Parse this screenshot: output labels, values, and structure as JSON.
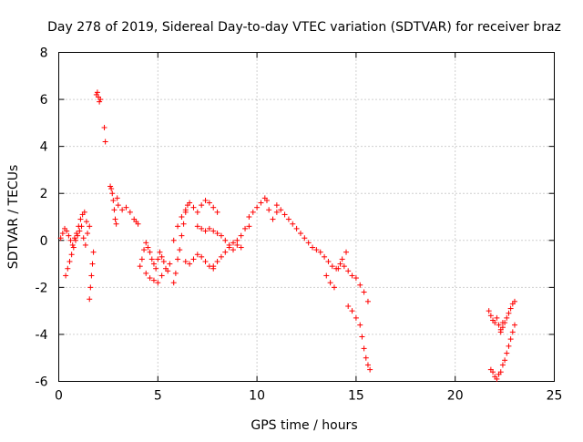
{
  "chart_data": {
    "type": "scatter",
    "title": "Day 278 of 2019, Sidereal Day-to-day VTEC variation (SDTVAR) for receiver braz",
    "xlabel": "GPS time / hours",
    "ylabel": "SDTVAR / TECUs",
    "xlim": [
      0,
      25
    ],
    "ylim": [
      -6,
      8
    ],
    "xticks": [
      0,
      5,
      10,
      15,
      20,
      25
    ],
    "yticks": [
      -6,
      -4,
      -2,
      0,
      2,
      4,
      6,
      8
    ],
    "grid": true,
    "marker": "+",
    "color": "#ff0000",
    "series": [
      {
        "name": "SDTVAR",
        "x": [
          0.1,
          0.2,
          0.3,
          0.4,
          0.5,
          0.6,
          0.7,
          0.8,
          0.9,
          1.0,
          1.1,
          1.2,
          1.3,
          1.4,
          0.35,
          0.45,
          0.55,
          0.65,
          0.75,
          0.85,
          0.95,
          1.05,
          1.15,
          1.25,
          1.35,
          1.45,
          1.55,
          1.55,
          1.6,
          1.65,
          1.7,
          1.75,
          1.9,
          1.95,
          2.0,
          2.05,
          2.1,
          2.3,
          2.35,
          2.6,
          2.65,
          2.7,
          2.75,
          2.8,
          2.85,
          2.9,
          2.95,
          3.0,
          3.2,
          3.4,
          3.6,
          3.8,
          3.9,
          4.0,
          4.1,
          4.2,
          4.3,
          4.4,
          4.5,
          4.6,
          4.7,
          4.8,
          4.9,
          5.0,
          5.1,
          5.2,
          5.3,
          4.4,
          4.6,
          4.8,
          5.0,
          5.2,
          5.4,
          5.5,
          5.6,
          5.8,
          5.9,
          6.0,
          6.1,
          6.2,
          6.3,
          6.4,
          6.5,
          5.8,
          6.0,
          6.2,
          6.4,
          6.6,
          6.8,
          7.0,
          7.2,
          7.4,
          7.6,
          7.8,
          8.0,
          6.4,
          6.6,
          6.8,
          7.0,
          7.2,
          7.4,
          7.6,
          7.8,
          7.0,
          7.2,
          7.4,
          7.6,
          7.8,
          8.0,
          8.2,
          8.4,
          8.6,
          8.8,
          9.0,
          9.2,
          9.4,
          9.6,
          7.8,
          8.0,
          8.2,
          8.4,
          8.6,
          8.8,
          9.0,
          9.2,
          9.6,
          9.8,
          10.0,
          10.2,
          10.4,
          10.5,
          10.6,
          10.8,
          11.0,
          11.0,
          11.2,
          11.4,
          11.6,
          11.8,
          12.0,
          12.2,
          12.4,
          12.6,
          12.8,
          13.0,
          13.2,
          13.4,
          13.6,
          13.8,
          14.0,
          14.2,
          14.4,
          14.6,
          14.8,
          15.0,
          15.2,
          15.4,
          15.6,
          13.5,
          13.7,
          13.9,
          14.1,
          14.3,
          14.5,
          14.6,
          14.8,
          15.0,
          15.2,
          15.3,
          15.4,
          15.5,
          15.6,
          15.7,
          21.7,
          21.8,
          21.9,
          22.0,
          22.1,
          22.2,
          22.3,
          22.4,
          21.8,
          21.9,
          22.0,
          22.1,
          22.2,
          22.3,
          22.4,
          22.5,
          22.6,
          22.7,
          22.8,
          22.9,
          23.0,
          22.3,
          22.4,
          22.5,
          22.6,
          22.7,
          22.8,
          22.9,
          23.0
        ],
        "y": [
          0.1,
          0.3,
          0.5,
          0.4,
          0.2,
          0.0,
          -0.2,
          0.1,
          0.3,
          0.6,
          0.9,
          1.1,
          1.2,
          0.8,
          -1.5,
          -1.2,
          -0.9,
          -0.6,
          -0.3,
          0.0,
          0.2,
          0.4,
          0.6,
          0.1,
          -0.2,
          0.3,
          0.6,
          -2.5,
          -2.0,
          -1.5,
          -1.0,
          -0.5,
          6.2,
          6.3,
          6.1,
          5.9,
          6.0,
          4.8,
          4.2,
          2.3,
          2.2,
          2.0,
          1.7,
          1.3,
          0.9,
          0.7,
          1.8,
          1.5,
          1.3,
          1.4,
          1.2,
          0.9,
          0.8,
          0.7,
          -1.1,
          -0.8,
          -0.4,
          -0.1,
          -0.3,
          -0.5,
          -0.8,
          -1.0,
          -1.2,
          -0.8,
          -0.5,
          -0.7,
          -0.9,
          -1.4,
          -1.6,
          -1.7,
          -1.8,
          -1.5,
          -1.2,
          -1.3,
          -1.0,
          -1.8,
          -1.4,
          -0.8,
          -0.4,
          0.2,
          0.7,
          1.2,
          1.5,
          0.0,
          0.6,
          1.0,
          1.3,
          1.6,
          1.4,
          1.2,
          1.5,
          1.7,
          1.6,
          1.4,
          1.2,
          -0.9,
          -1.0,
          -0.8,
          -0.6,
          -0.7,
          -0.9,
          -1.1,
          -1.2,
          0.6,
          0.5,
          0.4,
          0.5,
          0.4,
          0.3,
          0.2,
          0.0,
          -0.2,
          -0.1,
          0.0,
          0.2,
          0.5,
          0.6,
          -1.1,
          -0.9,
          -0.7,
          -0.5,
          -0.3,
          -0.4,
          -0.2,
          -0.3,
          1.0,
          1.2,
          1.4,
          1.6,
          1.8,
          1.7,
          1.3,
          0.9,
          1.2,
          1.5,
          1.3,
          1.1,
          0.9,
          0.7,
          0.5,
          0.3,
          0.1,
          -0.1,
          -0.3,
          -0.4,
          -0.5,
          -0.7,
          -0.9,
          -1.1,
          -1.2,
          -1.0,
          -1.1,
          -1.3,
          -1.5,
          -1.6,
          -1.9,
          -2.2,
          -2.6,
          -1.5,
          -1.8,
          -2.0,
          -1.2,
          -0.8,
          -0.5,
          -2.8,
          -3.0,
          -3.3,
          -3.6,
          -4.1,
          -4.6,
          -5.0,
          -5.3,
          -5.5,
          -3.0,
          -3.2,
          -3.4,
          -3.5,
          -3.3,
          -3.6,
          -3.8,
          -3.5,
          -5.5,
          -5.6,
          -5.8,
          -5.9,
          -5.7,
          -5.6,
          -5.3,
          -5.1,
          -4.8,
          -4.5,
          -4.2,
          -3.9,
          -3.6,
          -3.9,
          -3.7,
          -3.5,
          -3.3,
          -3.1,
          -2.9,
          -2.7,
          -2.6
        ]
      }
    ]
  }
}
